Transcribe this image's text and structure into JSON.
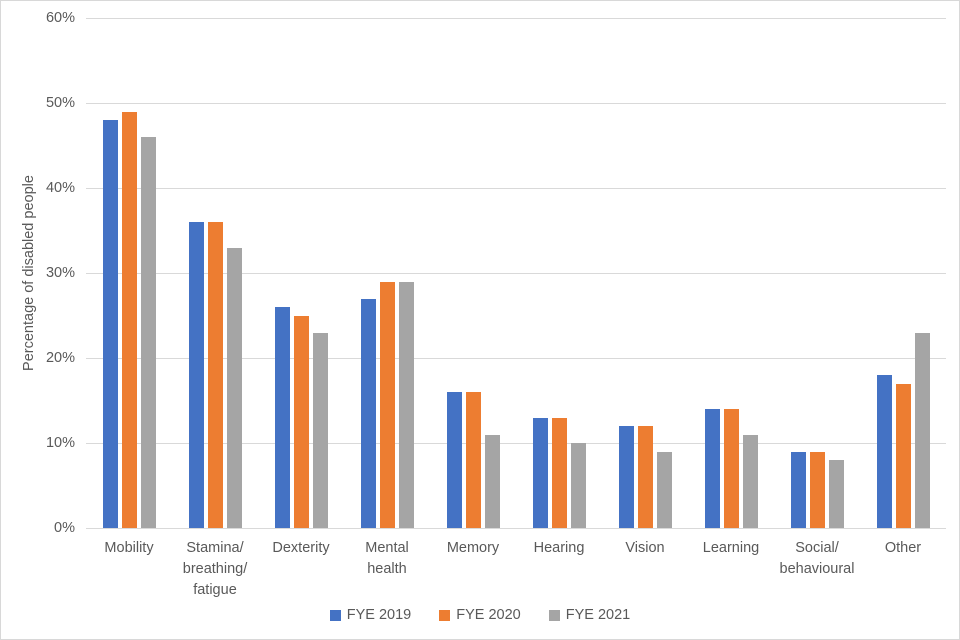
{
  "chart_data": {
    "type": "bar",
    "title": "",
    "xlabel": "",
    "ylabel": "Percentage of disabled people",
    "ylim": [
      0,
      60
    ],
    "yticks": [
      0,
      10,
      20,
      30,
      40,
      50,
      60
    ],
    "ytick_suffix": "%",
    "grid": true,
    "legend_position": "bottom",
    "categories": [
      "Mobility",
      "Stamina/\nbreathing/\nfatigue",
      "Dexterity",
      "Mental\nhealth",
      "Memory",
      "Hearing",
      "Vision",
      "Learning",
      "Social/\nbehavioural",
      "Other"
    ],
    "series": [
      {
        "name": "FYE 2019",
        "color": "#4472C4",
        "values": [
          48,
          36,
          26,
          27,
          16,
          13,
          12,
          14,
          9,
          18
        ]
      },
      {
        "name": "FYE 2020",
        "color": "#ED7D31",
        "values": [
          49,
          36,
          25,
          29,
          16,
          13,
          12,
          14,
          9,
          17
        ]
      },
      {
        "name": "FYE 2021",
        "color": "#A5A5A5",
        "values": [
          46,
          33,
          23,
          29,
          11,
          10,
          9,
          11,
          8,
          23
        ]
      }
    ]
  },
  "colors": {
    "gridline": "#D9D9D9",
    "axis_text": "#595959",
    "background": "#FFFFFF"
  }
}
